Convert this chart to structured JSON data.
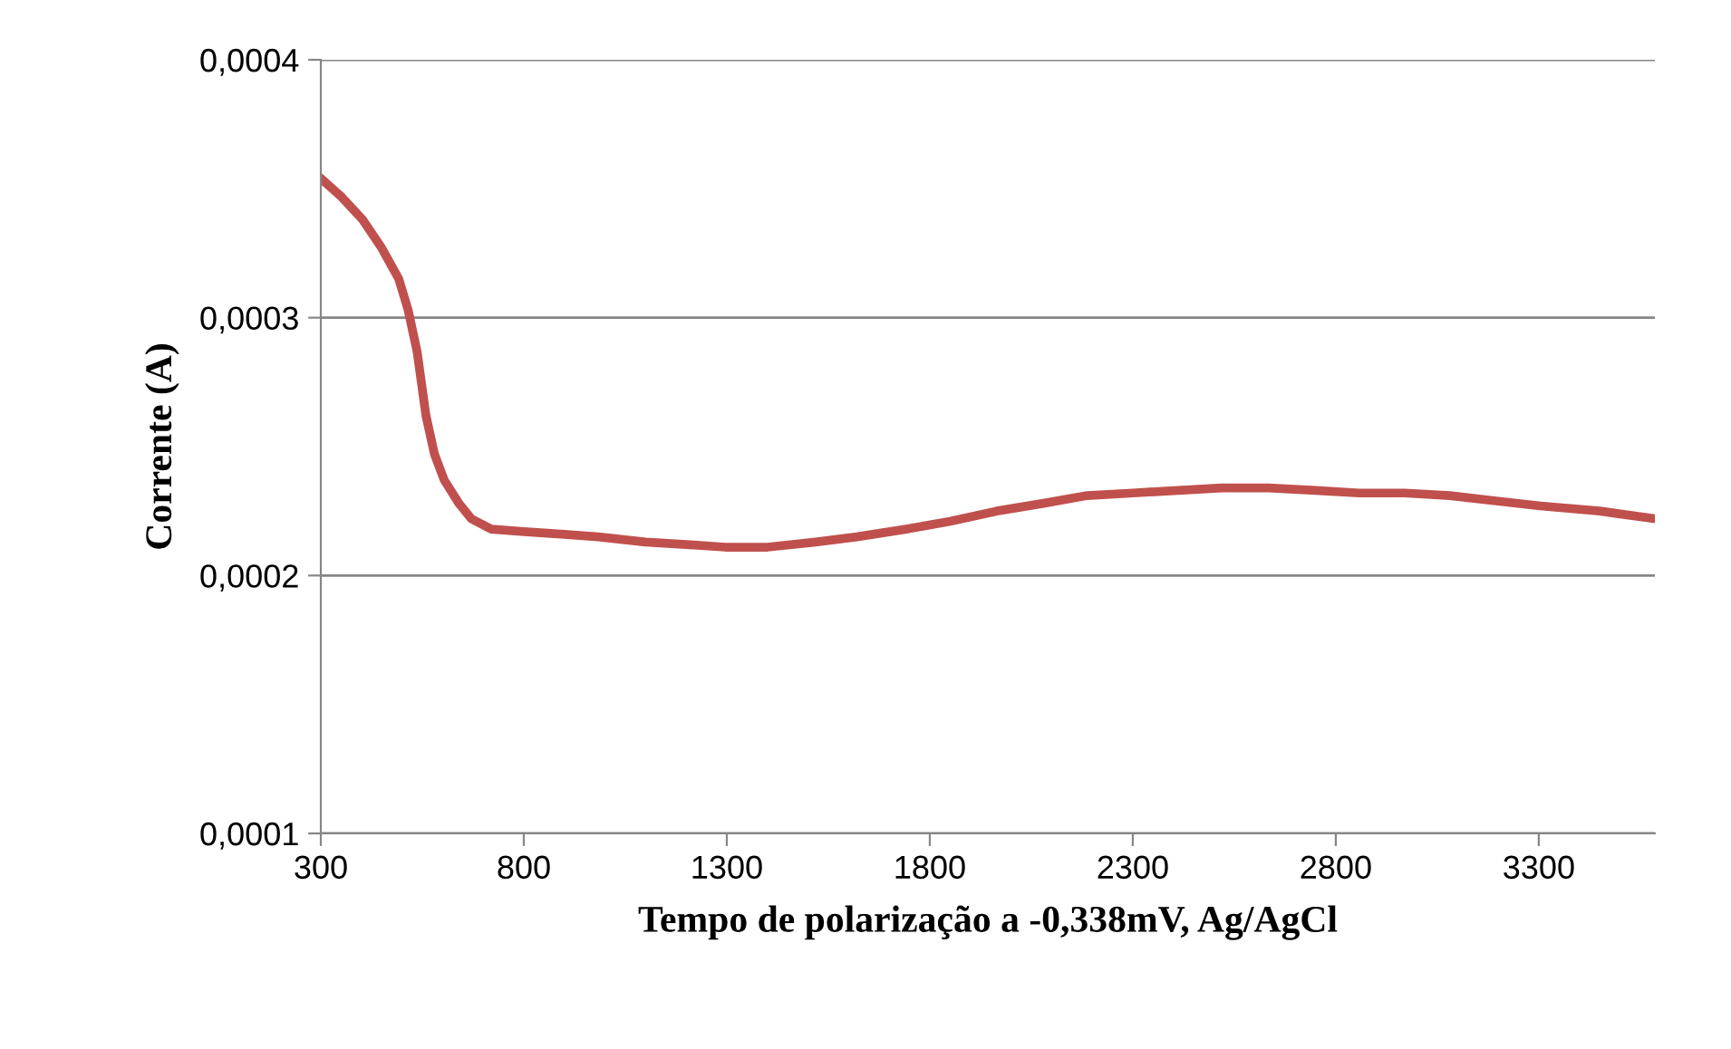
{
  "chart_data": {
    "type": "line",
    "xlabel": "Tempo de polarização a -0,338mV, Ag/AgCl",
    "ylabel": "Corrente (A)",
    "series": [
      {
        "color": "#c0504d",
        "x": [
          300,
          350,
          403,
          450,
          492,
          515,
          537,
          559,
          580,
          604,
          640,
          671,
          720,
          800,
          900,
          983,
          1100,
          1200,
          1296,
          1400,
          1519,
          1620,
          1742,
          1850,
          1965,
          2080,
          2188,
          2300,
          2411,
          2520,
          2634,
          2750,
          2858,
          2970,
          3081,
          3190,
          3304,
          3450,
          3586
        ],
        "values": [
          0.000354,
          0.000347,
          0.000338,
          0.000327,
          0.000315,
          0.000303,
          0.000287,
          0.000262,
          0.000247,
          0.000237,
          0.000228,
          0.000222,
          0.000218,
          0.000217,
          0.000216,
          0.000215,
          0.000213,
          0.000212,
          0.000211,
          0.000211,
          0.000213,
          0.000215,
          0.000218,
          0.000221,
          0.000225,
          0.000228,
          0.000231,
          0.000232,
          0.000233,
          0.000234,
          0.000234,
          0.000233,
          0.000232,
          0.000232,
          0.000231,
          0.000229,
          0.000227,
          0.000225,
          0.000222
        ]
      }
    ],
    "xlim": [
      300,
      3586
    ],
    "xticks": [
      300,
      800,
      1300,
      1800,
      2300,
      2800,
      3300
    ],
    "ylim": [
      0.0001,
      0.0004
    ],
    "yticks": [
      {
        "value": 0.0001,
        "label": "0,0001"
      },
      {
        "value": 0.0002,
        "label": "0,0002"
      },
      {
        "value": 0.0003,
        "label": "0,0003"
      },
      {
        "value": 0.0004,
        "label": "0,0004"
      }
    ],
    "grid": "y",
    "marker": "none",
    "line_style": "solid"
  }
}
